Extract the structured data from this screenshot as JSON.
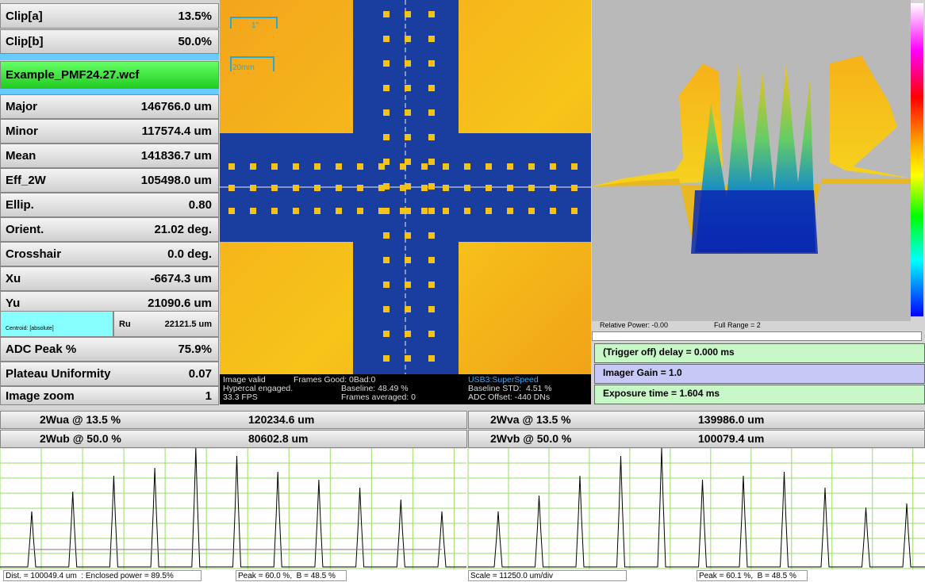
{
  "left_panel": {
    "top_rows": [
      {
        "label": "Clip[a]",
        "value": "13.5%"
      },
      {
        "label": "Clip[b]",
        "value": "50.0%"
      }
    ],
    "file": "Example_PMF24.27.wcf",
    "mid_rows": [
      {
        "label": "Major",
        "value": "146766.0 um"
      },
      {
        "label": "Minor",
        "value": "117574.4 um"
      },
      {
        "label": "Mean",
        "value": "141836.7 um"
      },
      {
        "label": "Eff_2W",
        "value": "105498.0 um"
      },
      {
        "label": "Ellip.",
        "value": "0.80"
      },
      {
        "label": "Orient.",
        "value": "21.02 deg."
      },
      {
        "label": "Crosshair",
        "value": "0.0 deg."
      },
      {
        "label": "Xu",
        "value": "-6674.3 um"
      },
      {
        "label": "Yu",
        "value": "21090.6 um"
      }
    ],
    "centroid": {
      "label": "Centroid: [absolute]",
      "name": "Ru",
      "value": "22121.5 um"
    },
    "bottom_rows": [
      {
        "label": "ADC Peak %",
        "value": "75.9%"
      },
      {
        "label": "Plateau Uniformity",
        "value": "0.07"
      },
      {
        "label": "Image zoom",
        "value": "1"
      }
    ]
  },
  "image": {
    "scale_labels": [
      "1\"",
      "20mm"
    ],
    "status": [
      "Image valid",
      "Frames Good: 0Bad:0",
      "Hypercal engaged.",
      "Baseline: 48.49 %",
      "33.3 FPS",
      "Frames averaged: 0"
    ],
    "status_right": [
      "USB3:SuperSpeed",
      "Baseline STD:  4.51 %",
      "ADC Offset: -440 DNs"
    ]
  },
  "plot3d": {
    "relative_power": "Relative Power: -0.00",
    "full_range": "Full Range = 2"
  },
  "controls": [
    "(Trigger off) delay = 0.000 ms",
    "Imager Gain = 1.0",
    "Exposure time = 1.604 ms"
  ],
  "widths": [
    [
      "2Wua @ 13.5 %",
      "120234.6 um",
      "2Wva @ 13.5 %",
      "139986.0 um"
    ],
    [
      "2Wub @ 50.0 %",
      "80602.8 um",
      "2Wvb @ 50.0 %",
      "100079.4 um"
    ]
  ],
  "footer": [
    "Dist. = 100049.4 um  : Enclosed power = 89.5%",
    "Peak = 60.0 %,  B = 48.5 %",
    "Scale = 11250.0 um/div",
    "Peak = 60.1 %,  B = 48.5 %"
  ]
}
